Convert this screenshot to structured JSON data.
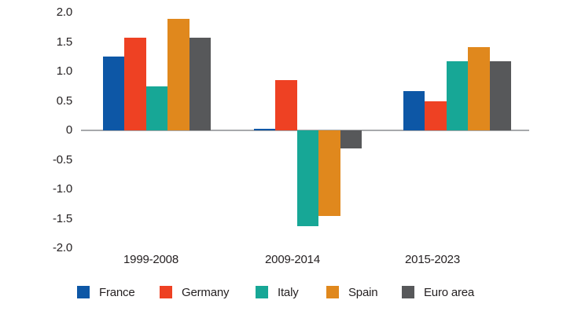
{
  "chart_data": {
    "type": "bar",
    "categories": [
      "1999-2008",
      "2009-2014",
      "2015-2023"
    ],
    "series": [
      {
        "name": "France",
        "color": "#0d57a6",
        "values": [
          1.25,
          0.03,
          0.67
        ]
      },
      {
        "name": "Germany",
        "color": "#ee4123",
        "values": [
          1.57,
          0.86,
          0.5
        ]
      },
      {
        "name": "Italy",
        "color": "#17a796",
        "values": [
          0.75,
          -1.63,
          1.17
        ]
      },
      {
        "name": "Spain",
        "color": "#e0881d",
        "values": [
          1.89,
          -1.45,
          1.41
        ]
      },
      {
        "name": "Euro area",
        "color": "#57585a",
        "values": [
          1.57,
          -0.31,
          1.17
        ]
      }
    ],
    "y_ticks": [
      "2.0",
      "1.5",
      "1.0",
      "0.5",
      "0",
      "-0.5",
      "-1.0",
      "-1.5",
      "-2.0"
    ],
    "ylim": [
      -2.0,
      2.0
    ],
    "title": "",
    "xlabel": "",
    "ylabel": "",
    "grid": false,
    "legend_position": "bottom",
    "axis_color": "#a7a9ac",
    "text_color": "#231f20"
  }
}
